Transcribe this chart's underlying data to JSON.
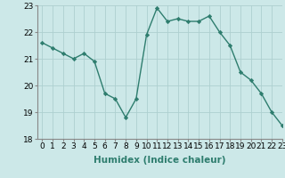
{
  "x": [
    0,
    1,
    2,
    3,
    4,
    5,
    6,
    7,
    8,
    9,
    10,
    11,
    12,
    13,
    14,
    15,
    16,
    17,
    18,
    19,
    20,
    21,
    22,
    23
  ],
  "y": [
    21.6,
    21.4,
    21.2,
    21.0,
    21.2,
    20.9,
    19.7,
    19.5,
    18.8,
    19.5,
    21.9,
    22.9,
    22.4,
    22.5,
    22.4,
    22.4,
    22.6,
    22.0,
    21.5,
    20.5,
    20.2,
    19.7,
    19.0,
    18.5
  ],
  "line_color": "#2e7d6e",
  "marker": "D",
  "marker_size": 2.2,
  "bg_color": "#cce8e8",
  "grid_color": "#aed0d0",
  "xlabel": "Humidex (Indice chaleur)",
  "ylim": [
    18,
    23
  ],
  "xlim": [
    -0.5,
    23
  ],
  "yticks": [
    18,
    19,
    20,
    21,
    22,
    23
  ],
  "xticks": [
    0,
    1,
    2,
    3,
    4,
    5,
    6,
    7,
    8,
    9,
    10,
    11,
    12,
    13,
    14,
    15,
    16,
    17,
    18,
    19,
    20,
    21,
    22,
    23
  ],
  "tick_fontsize": 6.5,
  "xlabel_fontsize": 7.5,
  "linewidth": 1.0
}
